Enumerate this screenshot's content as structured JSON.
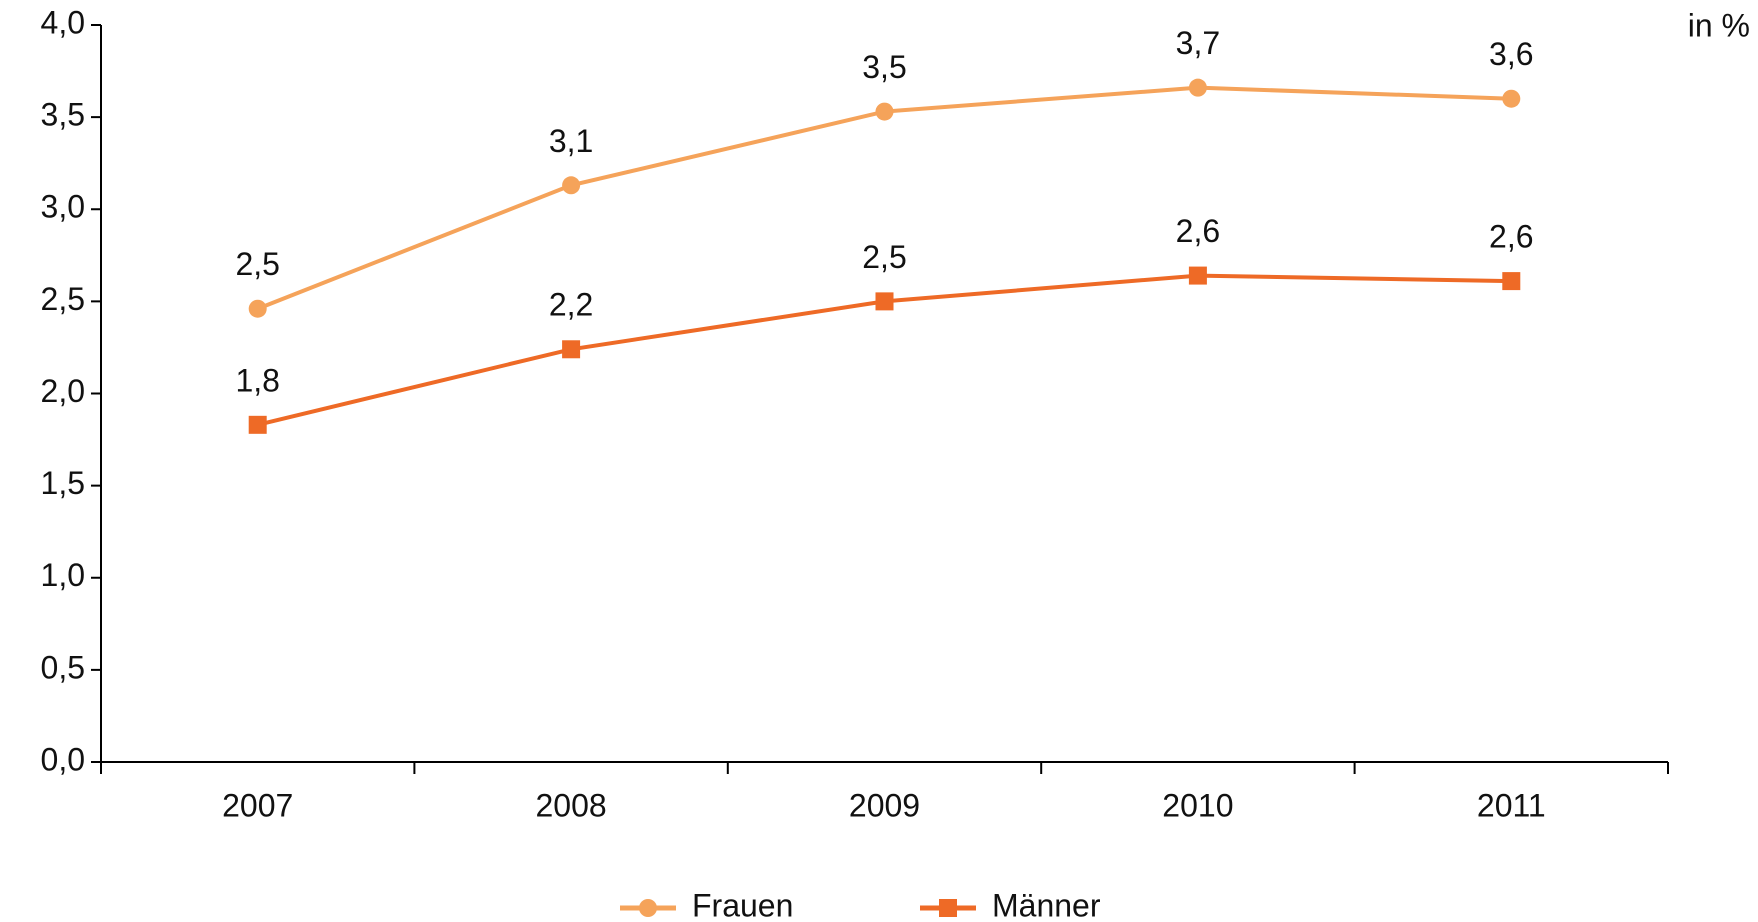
{
  "chart_data": {
    "type": "line",
    "unit_label": "in %",
    "categories": [
      "2007",
      "2008",
      "2009",
      "2010",
      "2011"
    ],
    "series": [
      {
        "name": "Frauen",
        "color": "#f5a35a",
        "marker": "circle",
        "values": [
          2.46,
          3.13,
          3.53,
          3.66,
          3.6
        ],
        "value_labels": [
          "2,5",
          "3,1",
          "3,5",
          "3,7",
          "3,6"
        ]
      },
      {
        "name": "Männer",
        "color": "#ee6a26",
        "marker": "square",
        "values": [
          1.83,
          2.24,
          2.5,
          2.64,
          2.61
        ],
        "value_labels": [
          "1,8",
          "2,2",
          "2,5",
          "2,6",
          "2,6"
        ]
      }
    ],
    "ylim": [
      0,
      4
    ],
    "yticks": [
      {
        "value": 0,
        "label": "0,0"
      },
      {
        "value": 0.5,
        "label": "0,5"
      },
      {
        "value": 1,
        "label": "1,0"
      },
      {
        "value": 1.5,
        "label": "1,5"
      },
      {
        "value": 2,
        "label": "2,0"
      },
      {
        "value": 2.5,
        "label": "2,5"
      },
      {
        "value": 3,
        "label": "3,0"
      },
      {
        "value": 3.5,
        "label": "3,5"
      },
      {
        "value": 4,
        "label": "4,0"
      }
    ],
    "grid": false,
    "legend": "bottom"
  }
}
